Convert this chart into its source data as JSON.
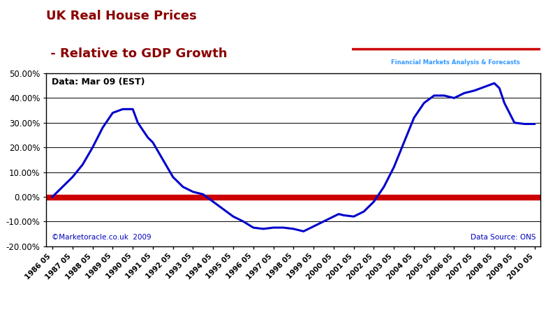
{
  "title_line1": "UK Real House Prices",
  "title_line2": " - Relative to GDP Growth",
  "title_color": "#8B0000",
  "annotation": "Data: Mar 09 (EST)",
  "copyright_text": "©Marketoracle.co.uk  2009",
  "datasource_text": "Data Source: ONS",
  "ylim": [
    -0.2,
    0.5
  ],
  "yticks": [
    -0.2,
    -0.1,
    0.0,
    0.1,
    0.2,
    0.3,
    0.4,
    0.5
  ],
  "line_color": "#0000CC",
  "zero_line_color": "#CC0000",
  "background_color": "#FFFFFF",
  "x_labels": [
    "1986 05",
    "1987 05",
    "1988 05",
    "1989 05",
    "1990 05",
    "1991 05",
    "1992 05",
    "1993 05",
    "1994 05",
    "1995 05",
    "1996 05",
    "1997 05",
    "1998 05",
    "1999 05",
    "2000 05",
    "2001 05",
    "2002 05",
    "2003 05",
    "2004 05",
    "2005 05",
    "2006 05",
    "2007 05",
    "2008 05",
    "2009 05",
    "2010 05"
  ],
  "data_x": [
    0,
    0.5,
    1,
    1.5,
    2,
    2.5,
    3,
    3.5,
    4,
    4.25,
    4.75,
    5,
    5.5,
    6,
    6.5,
    7,
    7.5,
    8,
    8.5,
    9,
    9.5,
    10,
    10.5,
    11,
    11.5,
    12,
    12.5,
    13,
    13.5,
    14,
    14.25,
    14.5,
    15,
    15.5,
    16,
    16.5,
    17,
    17.5,
    18,
    18.5,
    19,
    19.5,
    20,
    20.5,
    21,
    21.5,
    22,
    22.25,
    22.5,
    23,
    23.5,
    24
  ],
  "data_y": [
    0.0,
    0.04,
    0.08,
    0.13,
    0.2,
    0.28,
    0.34,
    0.355,
    0.355,
    0.3,
    0.24,
    0.22,
    0.15,
    0.08,
    0.04,
    0.02,
    0.01,
    -0.02,
    -0.05,
    -0.08,
    -0.1,
    -0.125,
    -0.13,
    -0.125,
    -0.125,
    -0.13,
    -0.14,
    -0.12,
    -0.1,
    -0.08,
    -0.07,
    -0.075,
    -0.08,
    -0.06,
    -0.02,
    0.04,
    0.12,
    0.22,
    0.32,
    0.38,
    0.41,
    0.41,
    0.4,
    0.42,
    0.43,
    0.445,
    0.46,
    0.44,
    0.38,
    0.3,
    0.295,
    0.295
  ]
}
